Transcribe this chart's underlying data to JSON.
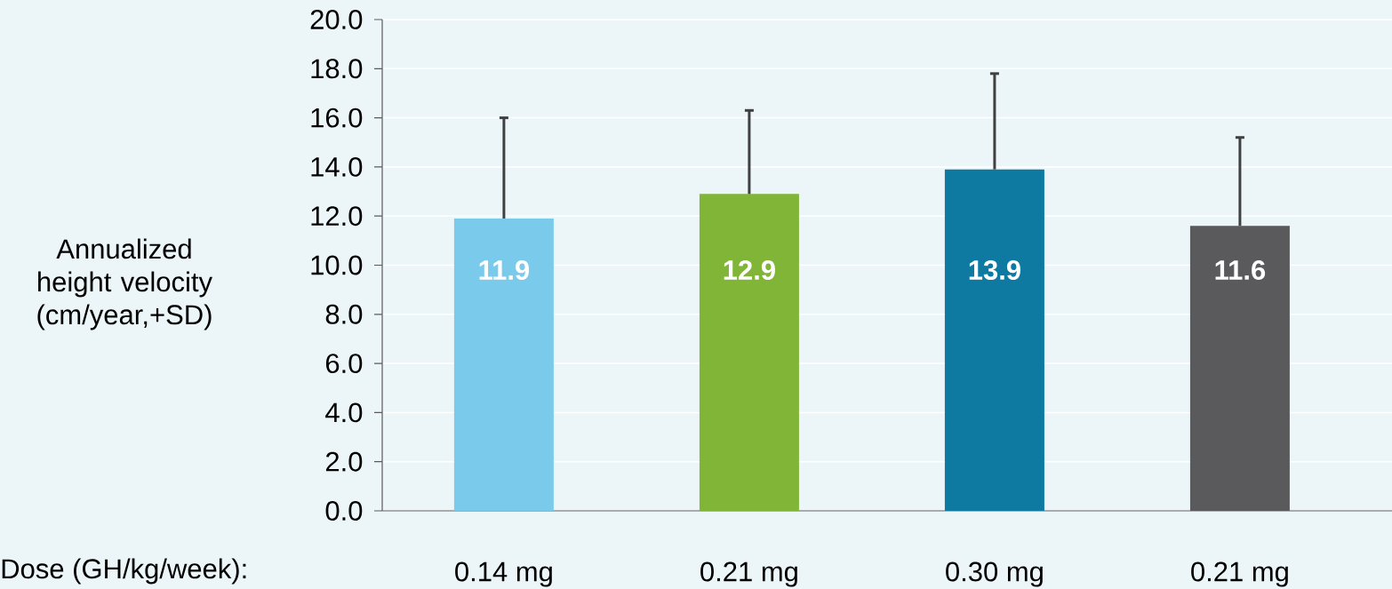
{
  "chart_data": {
    "type": "bar",
    "xlabel": "Dose (GH/kg/week):",
    "ylabel": "Annualized height velocity (cm/year,+SD)",
    "categories": [
      "0.14 mg",
      "0.21 mg",
      "0.30 mg",
      "0.21 mg"
    ],
    "values": [
      11.9,
      12.9,
      13.9,
      11.6
    ],
    "colors": [
      "#7acbeb",
      "#80b537",
      "#0e7aa2",
      "#5a5a5c"
    ],
    "errors": [
      4.1,
      3.4,
      3.9,
      3.6
    ],
    "data_labels": true,
    "ylim": [
      0,
      20
    ],
    "yticks": [
      {
        "value": 0,
        "label": "0.0"
      },
      {
        "value": 2,
        "label": "2.0"
      },
      {
        "value": 4,
        "label": "4.0"
      },
      {
        "value": 6,
        "label": "6.0"
      },
      {
        "value": 8,
        "label": "8.0"
      },
      {
        "value": 10,
        "label": "10.0"
      },
      {
        "value": 12,
        "label": "12.0"
      },
      {
        "value": 14,
        "label": "14.0"
      },
      {
        "value": 16,
        "label": "16.0"
      },
      {
        "value": 18,
        "label": "18.0"
      },
      {
        "value": 20,
        "label": "20.0"
      }
    ],
    "grid": "y"
  }
}
